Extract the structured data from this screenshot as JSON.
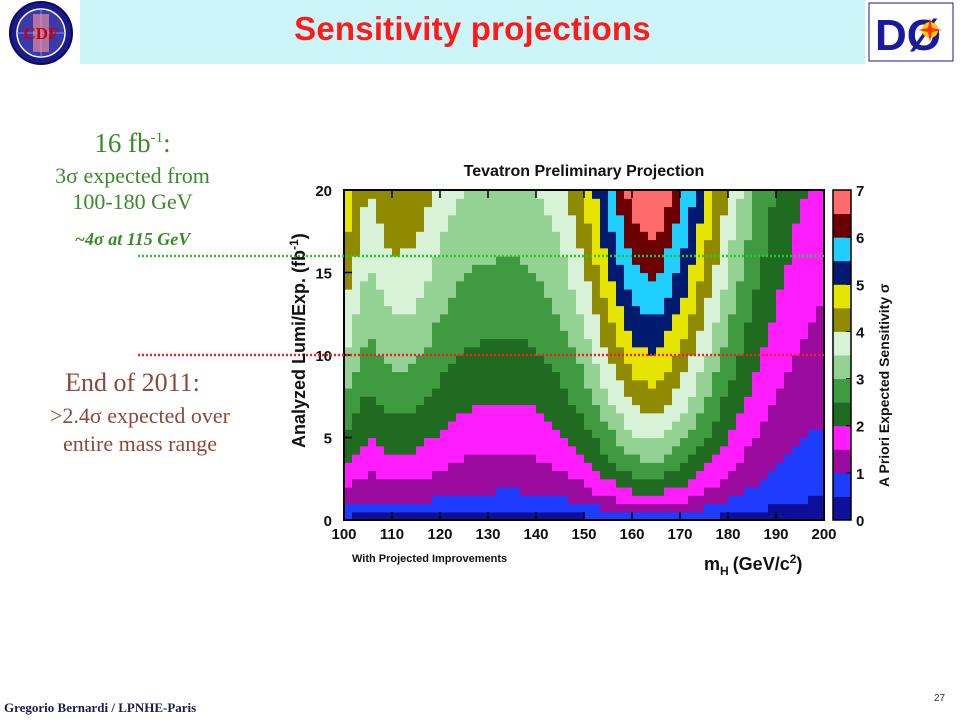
{
  "slide": {
    "title": "Sensitivity projections",
    "footer_author": "Gregorio Bernardi / LPNHE-Paris",
    "slide_number": "27",
    "logos": {
      "left": "CDF",
      "right": "DØ"
    }
  },
  "annotations": {
    "lumi_line": "16 fb",
    "lumi_sup": "-1",
    "lumi_colon": ":",
    "three_sigma_line1": "3σ expected from",
    "three_sigma_line2": "100-180 GeV",
    "four_sigma": "~4σ at 115 GeV",
    "end_2011_line1": "End of 2011:",
    "end_2011_line2": ">2.4σ expected over",
    "end_2011_line3": "entire mass range"
  },
  "colors": {
    "title_red": "#ff1a1a",
    "header_band": "#ccf5fa",
    "note_green": "#3a8a2a",
    "note_brown": "#8b4a3c",
    "green_dotted_line": "#22cc22",
    "red_dotted_line": "#ee2222"
  },
  "chart_data": {
    "type": "heatmap",
    "title": "Tevatron Preliminary Projection",
    "xlabel": "m",
    "xlabel_sub": "H",
    "xlabel_unit": "(GeV/c",
    "xlabel_unit_sup": "2",
    "xlabel_close": ")",
    "ylabel": "Analyzed Lumi/Exp. (fb",
    "ylabel_sup": "-1",
    "ylabel_close": ")",
    "zlabel": "A Priori Expected Sensitivity σ",
    "footnote": "With Projected Improvements",
    "xlim": [
      100,
      200
    ],
    "ylim": [
      0,
      20
    ],
    "zlim": [
      0,
      7
    ],
    "x_ticks": [
      100,
      110,
      120,
      130,
      140,
      150,
      160,
      170,
      180,
      190,
      200
    ],
    "y_ticks": [
      0,
      5,
      10,
      15,
      20
    ],
    "z_ticks": [
      0,
      1,
      2,
      3,
      4,
      5,
      6,
      7
    ],
    "x_tick_labels": [
      "100",
      "110",
      "120",
      "130",
      "140",
      "150",
      "160",
      "170",
      "180",
      "190",
      "200"
    ],
    "y_tick_labels": [
      "0",
      "5",
      "10",
      "15",
      "20"
    ],
    "z_tick_labels": [
      "0",
      "1",
      "2",
      "3",
      "4",
      "5",
      "6",
      "7"
    ],
    "z_levels": [
      0,
      0.5,
      1,
      1.5,
      2,
      2.5,
      3,
      3.5,
      4,
      4.5,
      5,
      5.5,
      6,
      6.5,
      7
    ],
    "level_colors": [
      "#0f0f9a",
      "#1d3cff",
      "#9a0b9e",
      "#ff1dff",
      "#1f6b1f",
      "#3f9a40",
      "#93d293",
      "#d8f2d8",
      "#8f8a00",
      "#e5e500",
      "#001a70",
      "#1fd0ff",
      "#6b0000",
      "#ff6a6a",
      "#7a7a7a",
      "#f0f0f0"
    ],
    "sensitivity_vs_mass": {
      "description_note": "",
      "masses": [
        100,
        105,
        110,
        115,
        120,
        125,
        130,
        135,
        140,
        145,
        150,
        155,
        160,
        165,
        170,
        175,
        180,
        185,
        190,
        195,
        200
      ],
      "sigma_at_10_fb": [
        3.5,
        2.8,
        3.15,
        3.1,
        2.7,
        2.45,
        2.4,
        2.35,
        2.45,
        2.7,
        3.2,
        4.0,
        4.8,
        5.0,
        4.4,
        3.6,
        2.8,
        2.2,
        1.75,
        1.45,
        1.3
      ]
    },
    "reference_lines": [
      {
        "y": 16,
        "color": "green"
      },
      {
        "y": 10,
        "color": "red"
      }
    ]
  }
}
